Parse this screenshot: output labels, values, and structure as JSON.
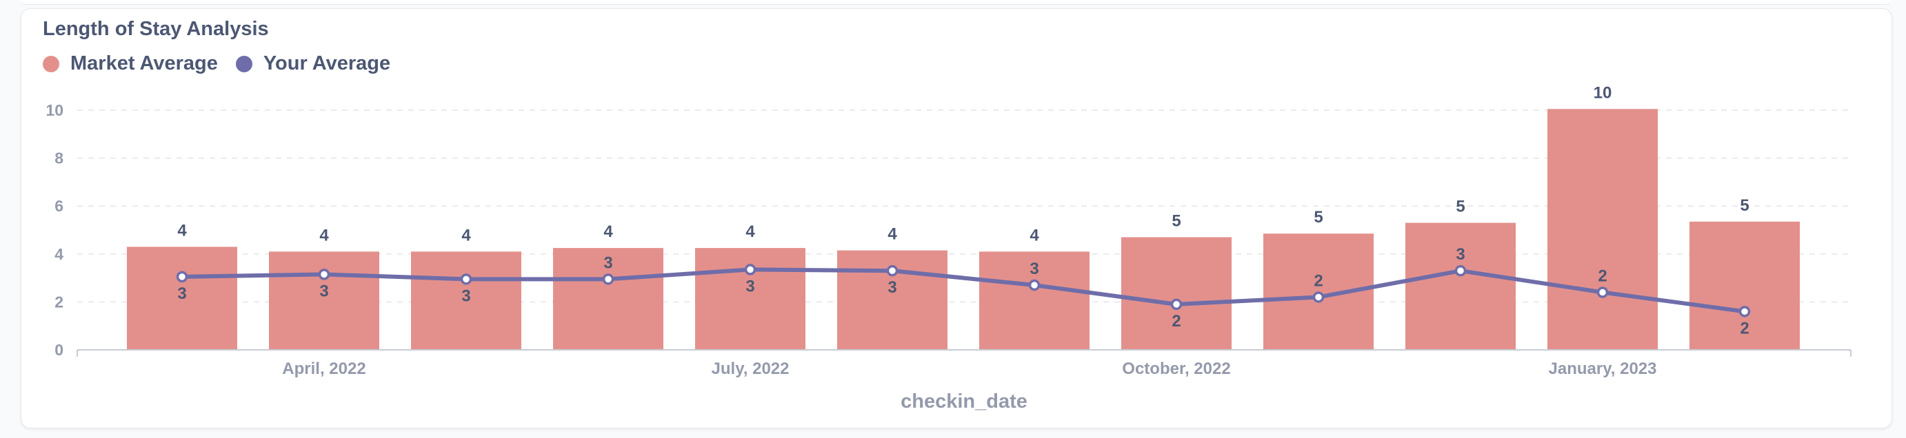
{
  "chart_data": {
    "type": "bar",
    "title": "Length of Stay Analysis",
    "xlabel": "checkin_date",
    "ylabel": "",
    "ylim": [
      0,
      10
    ],
    "yticks": [
      0,
      2,
      4,
      6,
      8,
      10
    ],
    "grid": true,
    "legend_position": "top-left",
    "x_tick_labels": [
      {
        "label": "April, 2022",
        "index": 1
      },
      {
        "label": "July, 2022",
        "index": 4
      },
      {
        "label": "October, 2022",
        "index": 7
      },
      {
        "label": "January, 2023",
        "index": 10
      }
    ],
    "categories": [
      "2022-03",
      "2022-04",
      "2022-05",
      "2022-06",
      "2022-07",
      "2022-08",
      "2022-09",
      "2022-10",
      "2022-11",
      "2022-12",
      "2023-01",
      "2023-02"
    ],
    "series": [
      {
        "name": "Market Average",
        "render": "bar",
        "color": "#e3908c",
        "values": [
          4.3,
          4.1,
          4.1,
          4.25,
          4.25,
          4.15,
          4.1,
          4.7,
          4.85,
          5.3,
          10.05,
          5.35
        ],
        "labels": [
          "4",
          "4",
          "4",
          "4",
          "4",
          "4",
          "4",
          "5",
          "5",
          "5",
          "10",
          "5"
        ]
      },
      {
        "name": "Your Average",
        "render": "line",
        "color": "#6f6da9",
        "values": [
          3.05,
          3.15,
          2.95,
          2.95,
          3.35,
          3.3,
          2.7,
          1.9,
          2.2,
          3.3,
          2.4,
          1.6
        ],
        "labels": [
          "3",
          "3",
          "3",
          "3",
          "3",
          "3",
          "3",
          "2",
          "2",
          "3",
          "2",
          "2"
        ],
        "label_positions": [
          "below",
          "below",
          "below",
          "above",
          "below",
          "below",
          "above",
          "below",
          "above",
          "above",
          "above",
          "below"
        ]
      }
    ]
  }
}
